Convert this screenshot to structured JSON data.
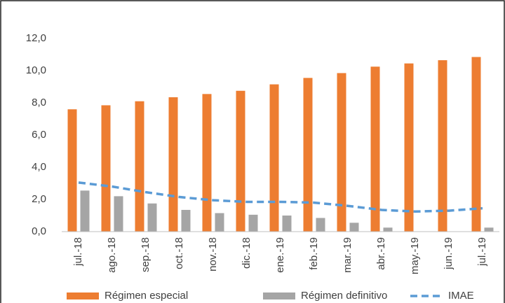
{
  "chart_data": {
    "type": "bar",
    "categories": [
      "jul.-18",
      "ago.-18",
      "sep.-18",
      "oct.-18",
      "nov.-18",
      "dic.-18",
      "ene.-19",
      "feb.-19",
      "mar.-19",
      "abr.-19",
      "may.-19",
      "jun.-19",
      "jul.-19"
    ],
    "series": [
      {
        "name": "Régimen especial",
        "type": "bar",
        "color": "#ed7d31",
        "values": [
          7.6,
          7.85,
          8.1,
          8.35,
          8.55,
          8.75,
          9.15,
          9.55,
          9.85,
          10.25,
          10.45,
          10.65,
          10.85
        ]
      },
      {
        "name": "Régimen definitivo",
        "type": "bar",
        "color": "#a5a5a5",
        "values": [
          2.55,
          2.2,
          1.75,
          1.35,
          1.15,
          1.05,
          1.0,
          0.85,
          0.55,
          0.25,
          0,
          0,
          0.25
        ]
      },
      {
        "name": "IMAE",
        "type": "line",
        "dashed": true,
        "color": "#5b9bd5",
        "values": [
          3.05,
          2.8,
          2.45,
          2.15,
          1.95,
          1.85,
          1.85,
          1.8,
          1.6,
          1.35,
          1.25,
          1.3,
          1.45
        ]
      }
    ],
    "ylim": [
      0,
      12
    ],
    "yticks": [
      {
        "value": 0,
        "label": "0,0"
      },
      {
        "value": 2,
        "label": "2,0"
      },
      {
        "value": 4,
        "label": "4,0"
      },
      {
        "value": 6,
        "label": "6,0"
      },
      {
        "value": 8,
        "label": "8,0"
      },
      {
        "value": 10,
        "label": "10,0"
      },
      {
        "value": 12,
        "label": "12,0"
      }
    ],
    "grid": false,
    "legend": "bottom"
  }
}
